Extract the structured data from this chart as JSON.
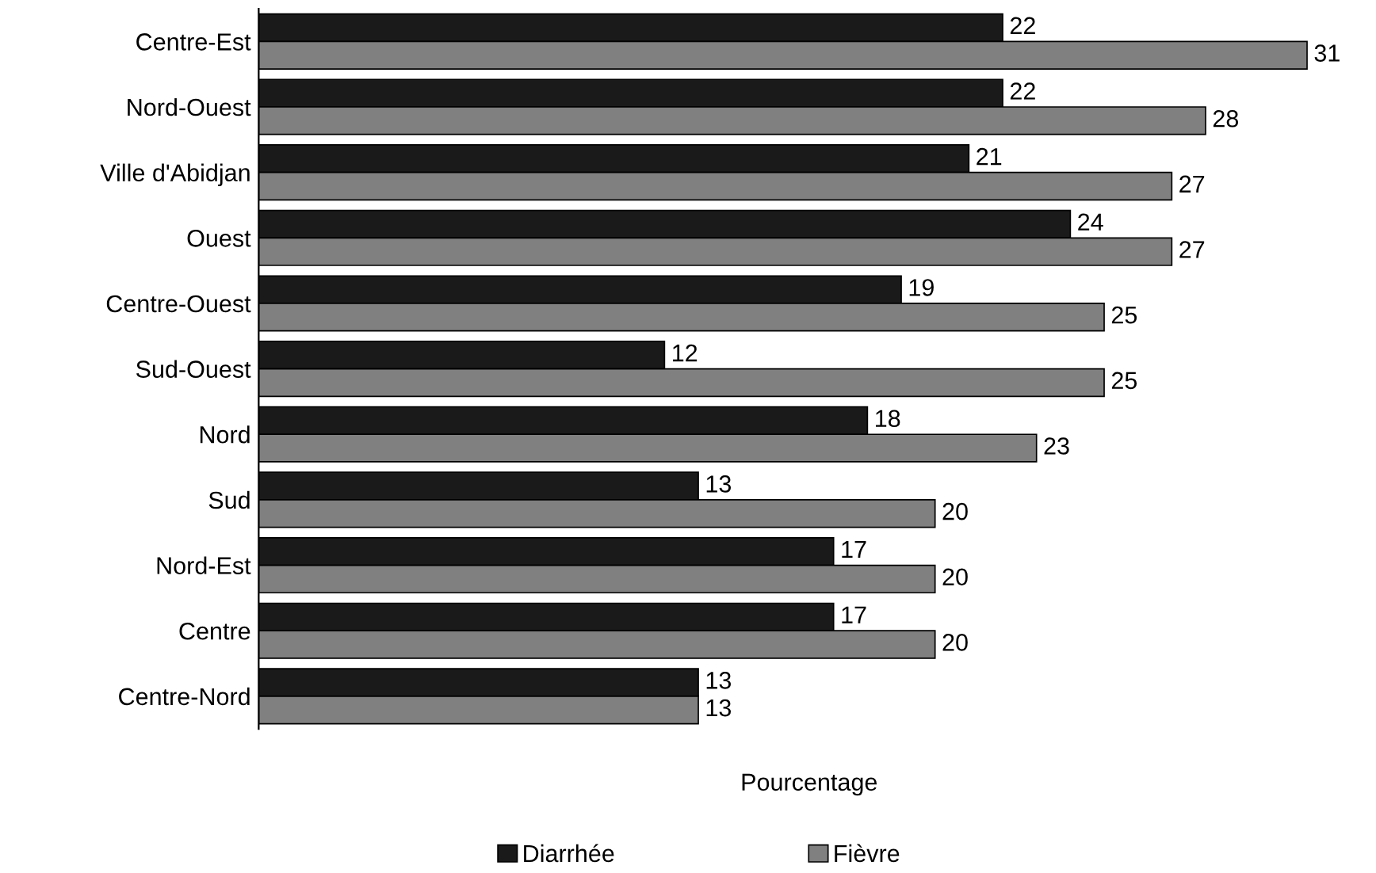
{
  "chart_data": {
    "type": "bar",
    "orientation": "horizontal",
    "xlabel": "Pourcentage",
    "categories": [
      "Centre-Est",
      "Nord-Ouest",
      "Ville d'Abidjan",
      "Ouest",
      "Centre-Ouest",
      "Sud-Ouest",
      "Nord",
      "Sud",
      "Nord-Est",
      "Centre",
      "Centre-Nord"
    ],
    "series": [
      {
        "name": "Diarrhée",
        "color": "#1a1a1a",
        "values": [
          22,
          22,
          21,
          24,
          19,
          12,
          18,
          13,
          17,
          17,
          13
        ]
      },
      {
        "name": "Fièvre",
        "color": "#808080",
        "values": [
          31,
          28,
          27,
          27,
          25,
          25,
          23,
          20,
          20,
          20,
          13
        ]
      }
    ],
    "tick_labels": "y",
    "data_labels": true,
    "legend": "bottom",
    "grid": false
  }
}
